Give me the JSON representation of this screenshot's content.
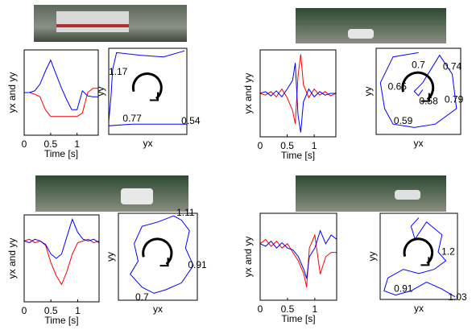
{
  "chart_data": [
    {
      "type": "line",
      "xlabel": "Time [s]",
      "ylabel": "yx and yy",
      "x": [
        0,
        0.1,
        0.2,
        0.3,
        0.4,
        0.5,
        0.6,
        0.7,
        0.8,
        0.9,
        1.0,
        1.1,
        1.2,
        1.3,
        1.4
      ],
      "xlim": [
        0,
        1.4
      ],
      "xticks": [
        0,
        0.5,
        1
      ],
      "ylim": [
        0,
        1
      ],
      "series": [
        {
          "color": "#ff0000",
          "values": [
            0.5,
            0.5,
            0.48,
            0.45,
            0.3,
            0.22,
            0.22,
            0.22,
            0.22,
            0.22,
            0.22,
            0.26,
            0.5,
            0.55,
            0.55
          ]
        },
        {
          "color": "#0000ff",
          "values": [
            0.5,
            0.5,
            0.52,
            0.6,
            0.75,
            0.88,
            0.72,
            0.56,
            0.42,
            0.3,
            0.3,
            0.52,
            0.46,
            0.45,
            0.45
          ]
        }
      ]
    },
    {
      "type": "trajectory",
      "xlabel": "yx",
      "ylabel": "yy",
      "xlim": [
        0,
        1
      ],
      "ylim": [
        0,
        1
      ],
      "x": [
        0.97,
        0.7,
        0.4,
        0.1,
        0.05,
        0.03,
        0.0,
        0.0,
        0.3,
        0.6,
        1.0
      ],
      "y": [
        0.97,
        0.9,
        0.92,
        0.95,
        0.75,
        0.45,
        0.15,
        0.1,
        0.12,
        0.12,
        0.12
      ],
      "annotations": [
        {
          "text": "1.17",
          "x": 0.12,
          "y": 0.72
        },
        {
          "text": "0.77",
          "x": 0.3,
          "y": 0.18
        },
        {
          "text": "0.54",
          "x": 1.05,
          "y": 0.15
        }
      ]
    },
    {
      "type": "line",
      "xlabel": "Time [s]",
      "ylabel": "yx and yy",
      "x": [
        0,
        0.1,
        0.2,
        0.3,
        0.4,
        0.5,
        0.6,
        0.65,
        0.7,
        0.75,
        0.8,
        0.9,
        1.0,
        1.1,
        1.2,
        1.3,
        1.4
      ],
      "xlim": [
        0,
        1.4
      ],
      "xticks": [
        0,
        0.5,
        1
      ],
      "ylim": [
        0,
        1
      ],
      "series": [
        {
          "color": "#ff0000",
          "values": [
            0.5,
            0.48,
            0.52,
            0.46,
            0.55,
            0.45,
            0.3,
            0.15,
            0.7,
            0.95,
            0.6,
            0.45,
            0.55,
            0.48,
            0.52,
            0.47,
            0.5
          ]
        },
        {
          "color": "#0000ff",
          "values": [
            0.5,
            0.52,
            0.47,
            0.53,
            0.46,
            0.55,
            0.65,
            0.85,
            0.25,
            0.05,
            0.4,
            0.55,
            0.46,
            0.52,
            0.48,
            0.5,
            0.5
          ]
        }
      ]
    },
    {
      "type": "trajectory",
      "xlabel": "yx",
      "ylabel": "yy",
      "xlim": [
        0,
        1
      ],
      "ylim": [
        0,
        1
      ],
      "x": [
        0.5,
        0.2,
        0.05,
        0.1,
        0.2,
        0.45,
        0.7,
        0.95,
        0.9,
        0.75,
        0.55,
        0.45,
        0.5,
        0.55
      ],
      "y": [
        0.95,
        0.9,
        0.6,
        0.3,
        0.12,
        0.08,
        0.12,
        0.3,
        0.7,
        0.92,
        0.6,
        0.5,
        0.45,
        0.52
      ],
      "annotations": [
        {
          "text": "0.7",
          "x": 0.5,
          "y": 0.8
        },
        {
          "text": "0.74",
          "x": 0.9,
          "y": 0.78
        },
        {
          "text": "0.65",
          "x": 0.25,
          "y": 0.55
        },
        {
          "text": "0.58",
          "x": 0.62,
          "y": 0.38
        },
        {
          "text": "0.79",
          "x": 0.92,
          "y": 0.4
        },
        {
          "text": "0.59",
          "x": 0.32,
          "y": 0.15
        }
      ]
    },
    {
      "type": "line",
      "xlabel": "Time [s]",
      "ylabel": "yx and yy",
      "x": [
        0,
        0.1,
        0.2,
        0.3,
        0.4,
        0.5,
        0.6,
        0.7,
        0.8,
        0.9,
        1.0,
        1.1,
        1.2,
        1.3,
        1.4
      ],
      "xlim": [
        0,
        1.4
      ],
      "xticks": [
        0,
        0.5,
        1
      ],
      "ylim": [
        0,
        1
      ],
      "series": [
        {
          "color": "#ff0000",
          "values": [
            0.7,
            0.72,
            0.68,
            0.7,
            0.65,
            0.45,
            0.3,
            0.2,
            0.35,
            0.55,
            0.68,
            0.7,
            0.72,
            0.68,
            0.7
          ]
        },
        {
          "color": "#0000ff",
          "values": [
            0.7,
            0.68,
            0.72,
            0.7,
            0.66,
            0.55,
            0.5,
            0.55,
            0.75,
            0.95,
            0.8,
            0.72,
            0.7,
            0.72,
            0.68
          ]
        }
      ]
    },
    {
      "type": "trajectory",
      "xlabel": "yx",
      "ylabel": "yy",
      "xlim": [
        0,
        1
      ],
      "ylim": [
        0,
        1
      ],
      "x": [
        0.7,
        0.5,
        0.3,
        0.2,
        0.25,
        0.15,
        0.3,
        0.45,
        0.6,
        0.8,
        0.95,
        0.85,
        0.9,
        0.8,
        0.7
      ],
      "y": [
        0.97,
        0.9,
        0.85,
        0.65,
        0.45,
        0.3,
        0.15,
        0.08,
        0.12,
        0.2,
        0.4,
        0.6,
        0.8,
        0.92,
        0.97
      ],
      "annotations": [
        {
          "text": "1.11",
          "x": 0.85,
          "y": 1.0
        },
        {
          "text": "0.91",
          "x": 1.0,
          "y": 0.4
        },
        {
          "text": "0.7",
          "x": 0.3,
          "y": 0.03
        }
      ]
    },
    {
      "type": "line",
      "xlabel": "Time [s]",
      "ylabel": "yx and yy",
      "x": [
        0,
        0.1,
        0.2,
        0.3,
        0.4,
        0.5,
        0.6,
        0.7,
        0.8,
        0.85,
        0.9,
        1.0,
        1.1,
        1.2,
        1.3,
        1.4
      ],
      "xlim": [
        0,
        1.4
      ],
      "xticks": [
        0,
        0.5,
        1
      ],
      "ylim": [
        0,
        1
      ],
      "series": [
        {
          "color": "#ff0000",
          "values": [
            0.65,
            0.7,
            0.62,
            0.68,
            0.6,
            0.65,
            0.55,
            0.45,
            0.3,
            0.15,
            0.6,
            0.75,
            0.3,
            0.5,
            0.55,
            0.55
          ]
        },
        {
          "color": "#0000ff",
          "values": [
            0.65,
            0.62,
            0.68,
            0.6,
            0.66,
            0.6,
            0.58,
            0.5,
            0.35,
            0.25,
            0.5,
            0.6,
            0.8,
            0.65,
            0.75,
            0.7
          ]
        }
      ]
    },
    {
      "type": "trajectory",
      "xlabel": "yx",
      "ylabel": "yy",
      "xlim": [
        0,
        1
      ],
      "ylim": [
        0,
        1
      ],
      "x": [
        0.5,
        0.4,
        0.45,
        0.6,
        0.8,
        0.75,
        0.85,
        0.7,
        0.5,
        0.3,
        0.1,
        0.05,
        0.2,
        0.4,
        0.6,
        0.8,
        0.97
      ],
      "y": [
        0.95,
        0.85,
        0.7,
        0.9,
        0.75,
        0.55,
        0.45,
        0.35,
        0.3,
        0.35,
        0.25,
        0.1,
        0.05,
        0.1,
        0.2,
        0.12,
        0.03
      ],
      "annotations": [
        {
          "text": "1.2",
          "x": 0.88,
          "y": 0.55
        },
        {
          "text": "0.91",
          "x": 0.3,
          "y": 0.12
        },
        {
          "text": "1.03",
          "x": 1.0,
          "y": 0.02
        }
      ]
    }
  ]
}
